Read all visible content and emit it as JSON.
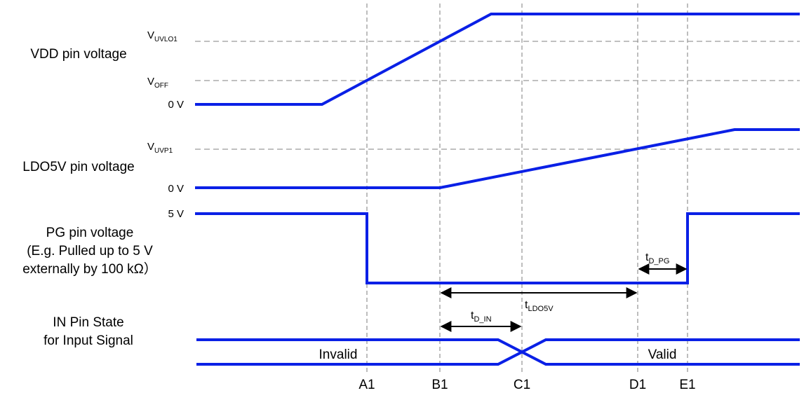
{
  "signals": {
    "vdd": {
      "label": "VDD pin voltage",
      "levels": {
        "uvlo1": {
          "main": "V",
          "sub": "UVLO1"
        },
        "off": {
          "main": "V",
          "sub": "OFF"
        },
        "zero": "0 V"
      }
    },
    "ldo5v": {
      "label": "LDO5V pin voltage",
      "levels": {
        "uvp1": {
          "main": "V",
          "sub": "UVP1"
        },
        "zero": "0 V"
      }
    },
    "pg": {
      "label_line1": "PG pin voltage",
      "label_line2": "(E.g. Pulled up to 5 V",
      "label_line3": "externally by 100 kΩ）",
      "levels": {
        "five": "5 V"
      }
    },
    "in_pin": {
      "label_line1": "IN Pin State",
      "label_line2": "for Input Signal",
      "state_invalid": "Invalid",
      "state_valid": "Valid"
    }
  },
  "timing_marks": [
    "A1",
    "B1",
    "C1",
    "D1",
    "E1"
  ],
  "intervals": {
    "t_d_pg": {
      "main": "t",
      "sub": "D_PG"
    },
    "t_ldo5v": {
      "main": "t",
      "sub": "LDO5V"
    },
    "t_d_in": {
      "main": "t",
      "sub": "D_IN"
    }
  },
  "colors": {
    "signal": "#0a20e6",
    "guides": "#9a9a9a",
    "arrows": "#000000"
  }
}
